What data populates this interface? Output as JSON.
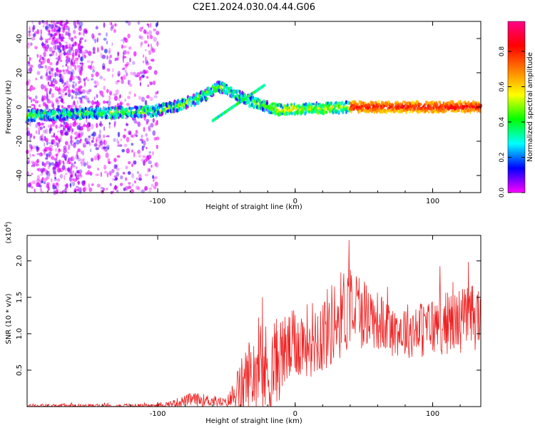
{
  "title": "C2E1.2024.030.04.44.G06",
  "chart_data": [
    {
      "type": "heatmap",
      "xlabel": "Height of straight line (km)",
      "ylabel": "Frequency (Hz)",
      "xlim": [
        -195,
        135
      ],
      "ylim": [
        -50,
        50
      ],
      "xticks": [
        "-100",
        "0",
        "100"
      ],
      "yticks": [
        "-40",
        "-20",
        "0",
        "20",
        "40"
      ],
      "colorbar": {
        "label": "Normalized spectral amplitude",
        "range": [
          0,
          0.97
        ],
        "ticks": [
          "0.0",
          "0.2",
          "0.4",
          "0.6",
          "0.8"
        ],
        "colormap": [
          "#ff00ff",
          "#0000ff",
          "#00ffff",
          "#00ff00",
          "#ffff00",
          "#ff8000",
          "#ff0000",
          "#ff0088"
        ]
      },
      "ridge": [
        {
          "x": -195,
          "f": -5
        },
        {
          "x": -160,
          "f": -4
        },
        {
          "x": -120,
          "f": -3
        },
        {
          "x": -100,
          "f": -2
        },
        {
          "x": -80,
          "f": 2
        },
        {
          "x": -65,
          "f": 7
        },
        {
          "x": -55,
          "f": 12
        },
        {
          "x": -45,
          "f": 8
        },
        {
          "x": -35,
          "f": 4
        },
        {
          "x": -20,
          "f": 0
        },
        {
          "x": -10,
          "f": -2
        },
        {
          "x": 0,
          "f": -1
        },
        {
          "x": 20,
          "f": -1
        },
        {
          "x": 40,
          "f": 0
        },
        {
          "x": 80,
          "f": 0
        },
        {
          "x": 135,
          "f": 0
        }
      ],
      "scattered_noise_x_range": [
        -195,
        -100
      ]
    },
    {
      "type": "line",
      "xlabel": "Height of straight line (km)",
      "ylabel": "SNR (10 * v/v)",
      "y_multiplier": "(x10",
      "y_multiplier_exp": "4",
      "y_multiplier_close": ")",
      "xlim": [
        -195,
        135
      ],
      "ylim": [
        0,
        2.35
      ],
      "xticks": [
        "-100",
        "0",
        "100"
      ],
      "yticks": [
        "0.5",
        "1.0",
        "1.5",
        "2.0"
      ],
      "color": "#ee2222",
      "envelope": [
        {
          "x": -195,
          "base": 0.01,
          "amp": 0.03
        },
        {
          "x": -100,
          "base": 0.01,
          "amp": 0.04
        },
        {
          "x": -90,
          "base": 0.04,
          "amp": 0.06
        },
        {
          "x": -75,
          "base": 0.1,
          "amp": 0.12
        },
        {
          "x": -60,
          "base": 0.08,
          "amp": 0.1
        },
        {
          "x": -50,
          "base": 0.05,
          "amp": 0.08
        },
        {
          "x": -42,
          "base": 0.2,
          "amp": 0.4
        },
        {
          "x": -30,
          "base": 0.5,
          "amp": 0.8
        },
        {
          "x": -20,
          "base": 0.45,
          "amp": 0.9
        },
        {
          "x": -10,
          "base": 0.7,
          "amp": 0.7
        },
        {
          "x": 0,
          "base": 0.85,
          "amp": 0.6
        },
        {
          "x": 20,
          "base": 1.0,
          "amp": 0.7
        },
        {
          "x": 40,
          "base": 1.4,
          "amp": 0.8
        },
        {
          "x": 55,
          "base": 1.25,
          "amp": 0.55
        },
        {
          "x": 70,
          "base": 1.05,
          "amp": 0.45
        },
        {
          "x": 90,
          "base": 1.05,
          "amp": 0.5
        },
        {
          "x": 110,
          "base": 1.15,
          "amp": 0.55
        },
        {
          "x": 135,
          "base": 1.25,
          "amp": 0.6
        }
      ]
    }
  ]
}
